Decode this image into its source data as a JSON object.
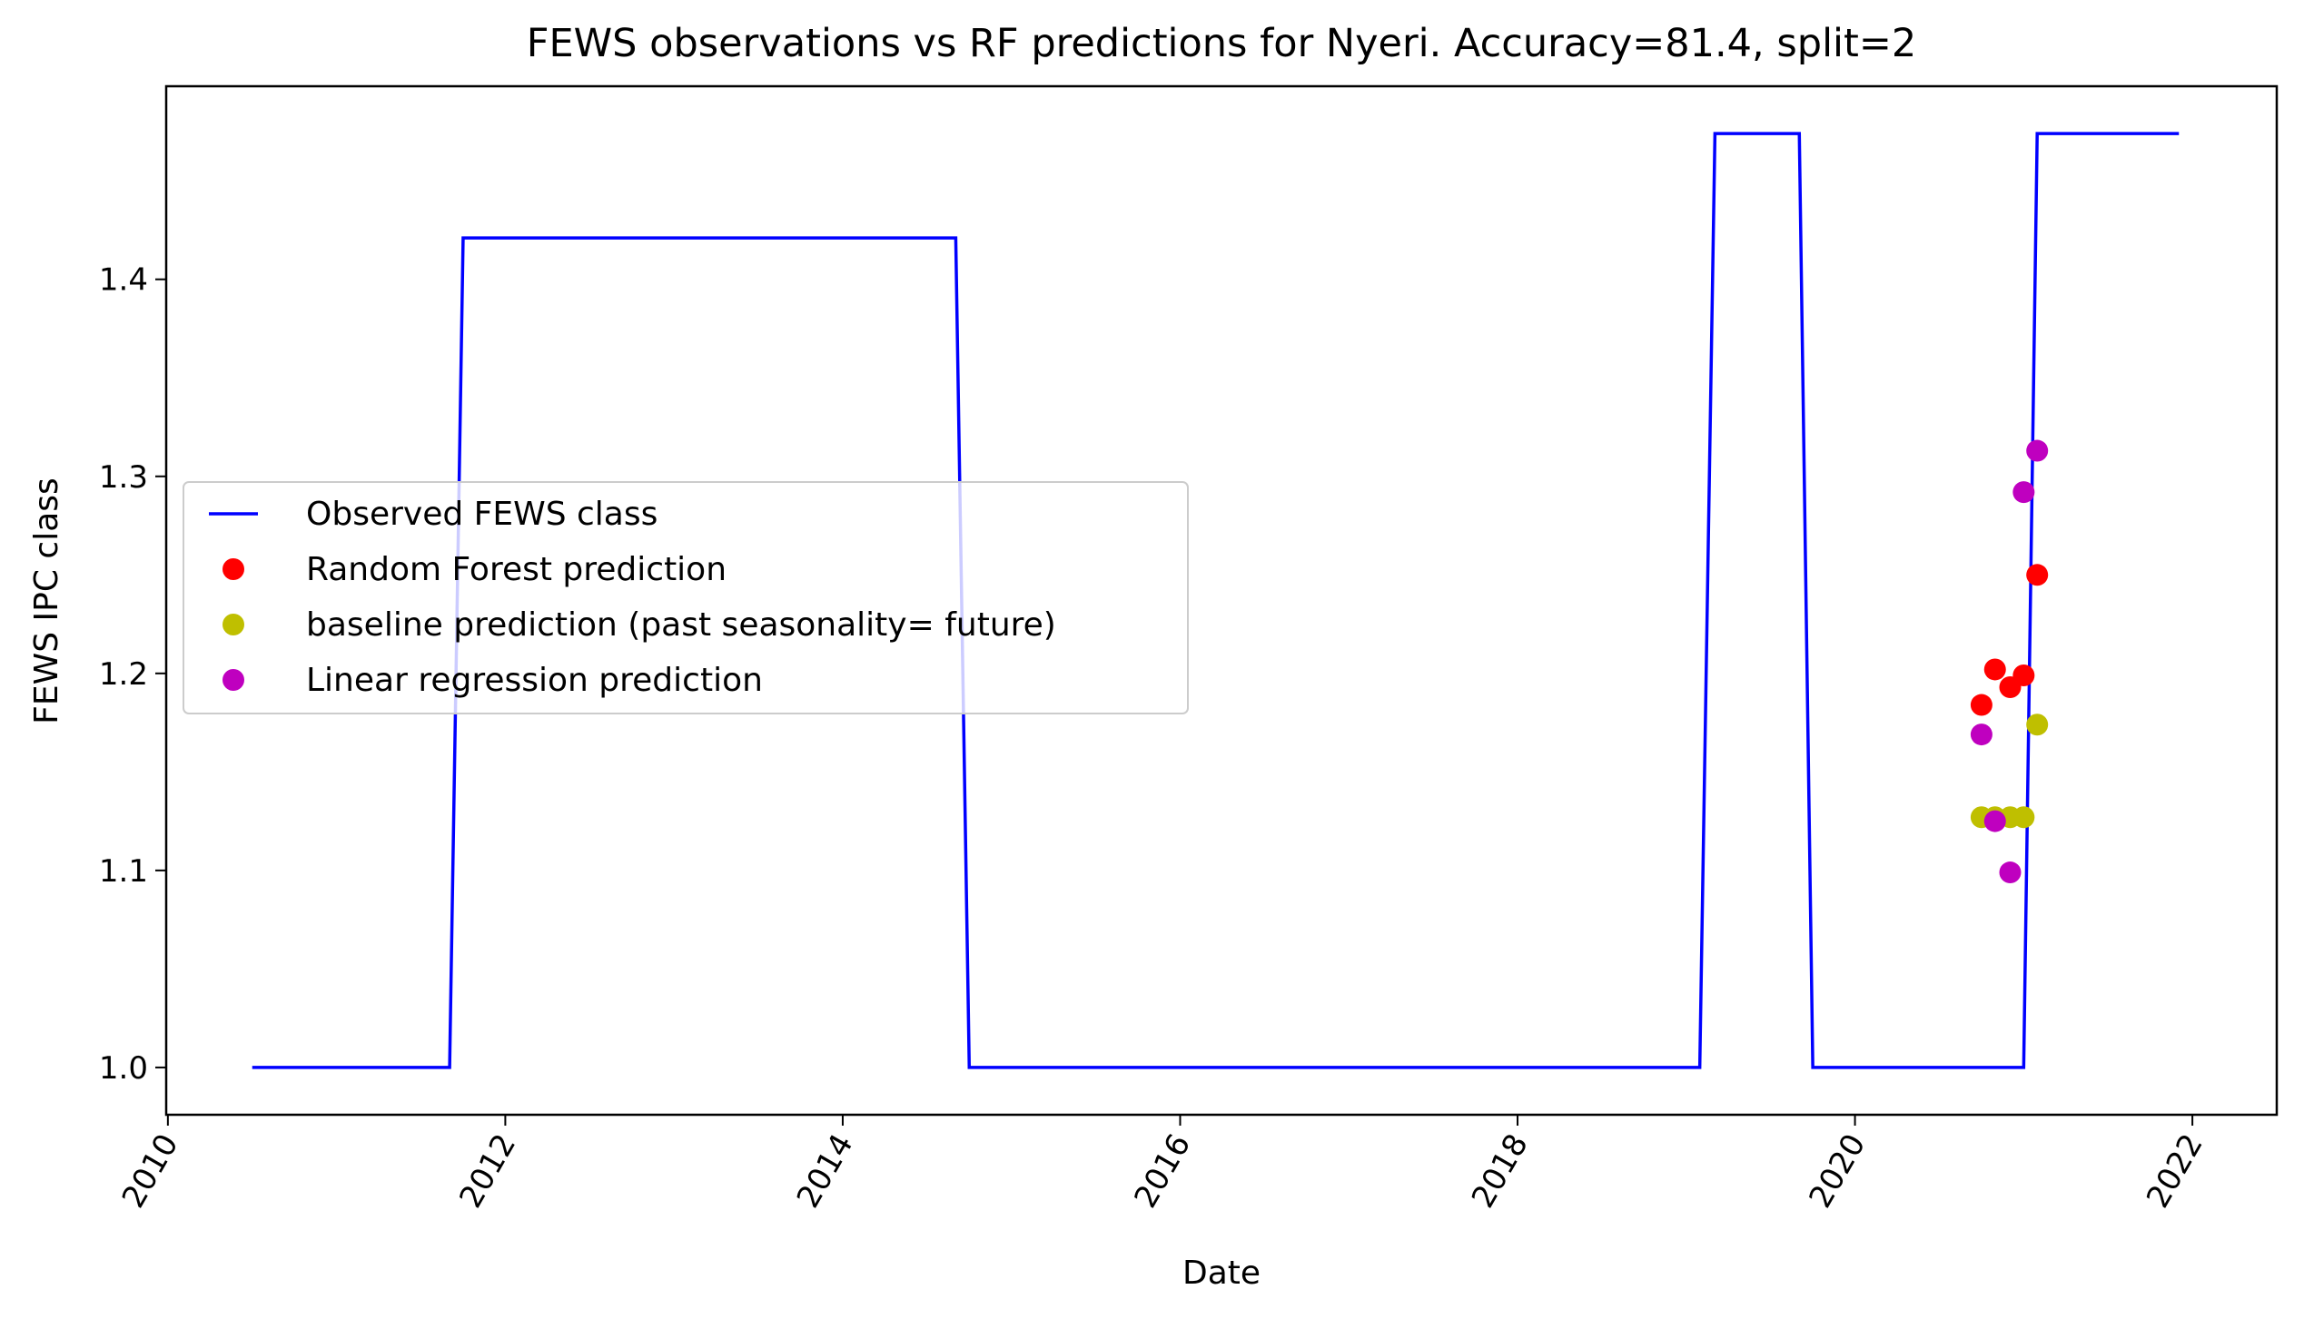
{
  "chart_data": {
    "type": "line",
    "title": "FEWS observations vs RF predictions for Nyeri. Accuracy=81.4, split=2",
    "xlabel": "Date",
    "ylabel": "FEWS IPC class",
    "xlim": [
      2009.99,
      2022.5
    ],
    "ylim": [
      0.976,
      1.498
    ],
    "x_ticks": [
      2010,
      2012,
      2014,
      2016,
      2018,
      2020,
      2022
    ],
    "x_tick_labels": [
      "2010",
      "2012",
      "2014",
      "2016",
      "2018",
      "2020",
      "2022"
    ],
    "y_ticks": [
      1.0,
      1.1,
      1.2,
      1.3,
      1.4
    ],
    "y_tick_labels": [
      "1.0",
      "1.1",
      "1.2",
      "1.3",
      "1.4"
    ],
    "grid": false,
    "legend_position": "center-left",
    "series": [
      {
        "name": "Observed FEWS class",
        "kind": "line",
        "color": "#0000ff",
        "x": [
          2010.5,
          2011.67,
          2011.75,
          2014.67,
          2014.75,
          2019.08,
          2019.17,
          2019.67,
          2019.75,
          2021.0,
          2021.08,
          2021.92
        ],
        "y": [
          1.0,
          1.0,
          1.421,
          1.421,
          1.0,
          1.0,
          1.474,
          1.474,
          1.0,
          1.0,
          1.474,
          1.474
        ]
      },
      {
        "name": "Random Forest prediction",
        "kind": "scatter",
        "color": "#ff0000",
        "x": [
          2020.75,
          2020.83,
          2020.92,
          2021.0,
          2021.08
        ],
        "y": [
          1.184,
          1.202,
          1.193,
          1.199,
          1.25
        ]
      },
      {
        "name": "baseline prediction (past seasonality= future)",
        "kind": "scatter",
        "color": "#bfbf00",
        "x": [
          2020.75,
          2020.83,
          2020.92,
          2021.0,
          2021.08
        ],
        "y": [
          1.127,
          1.127,
          1.127,
          1.127,
          1.174
        ]
      },
      {
        "name": "Linear regression prediction",
        "kind": "scatter",
        "color": "#bf00bf",
        "x": [
          2020.75,
          2020.83,
          2020.92,
          2021.0,
          2021.08
        ],
        "y": [
          1.169,
          1.125,
          1.099,
          1.292,
          1.313
        ]
      }
    ]
  }
}
